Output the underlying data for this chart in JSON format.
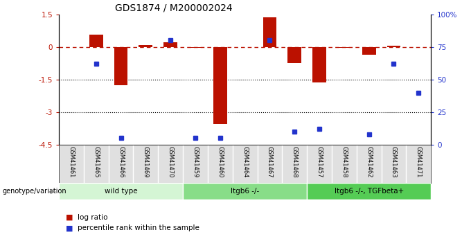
{
  "title": "GDS1874 / M200002024",
  "samples": [
    "GSM41461",
    "GSM41465",
    "GSM41466",
    "GSM41469",
    "GSM41470",
    "GSM41459",
    "GSM41460",
    "GSM41464",
    "GSM41467",
    "GSM41468",
    "GSM41457",
    "GSM41458",
    "GSM41462",
    "GSM41463",
    "GSM41471"
  ],
  "log_ratio": [
    0.0,
    0.55,
    -1.75,
    0.08,
    0.22,
    -0.04,
    -3.55,
    0.0,
    1.35,
    -0.75,
    -1.65,
    -0.05,
    -0.35,
    0.05,
    0.0
  ],
  "percentile_rank": [
    null,
    62,
    5,
    null,
    80,
    5,
    5,
    null,
    80,
    10,
    12,
    null,
    8,
    62,
    40
  ],
  "groups": [
    {
      "label": "wild type",
      "start": 0,
      "end": 5,
      "color": "#d4f5d4"
    },
    {
      "label": "Itgb6 -/-",
      "start": 5,
      "end": 10,
      "color": "#88dd88"
    },
    {
      "label": "Itgb6 -/-, TGFbeta+",
      "start": 10,
      "end": 15,
      "color": "#55cc55"
    }
  ],
  "ylim": [
    -4.5,
    1.5
  ],
  "yticks_left": [
    1.5,
    0.0,
    -1.5,
    -3.0,
    -4.5
  ],
  "yticks_left_labels": [
    "1.5",
    "0",
    "-1.5",
    "-3",
    "-4.5"
  ],
  "yticks_right_vals": [
    1.5,
    0.0,
    -1.5,
    -3.0,
    -4.5
  ],
  "yticks_right_labels": [
    "100%",
    "75",
    "50",
    "25",
    "0"
  ],
  "bar_color": "#bb1100",
  "dot_color": "#2233cc",
  "dotted_lines": [
    -1.5,
    -3.0
  ],
  "bar_width": 0.55,
  "legend_items": [
    {
      "label": "log ratio",
      "color": "#bb1100"
    },
    {
      "label": "percentile rank within the sample",
      "color": "#2233cc"
    }
  ],
  "genotype_label": "genotype/variation",
  "background_color": "#ffffff"
}
